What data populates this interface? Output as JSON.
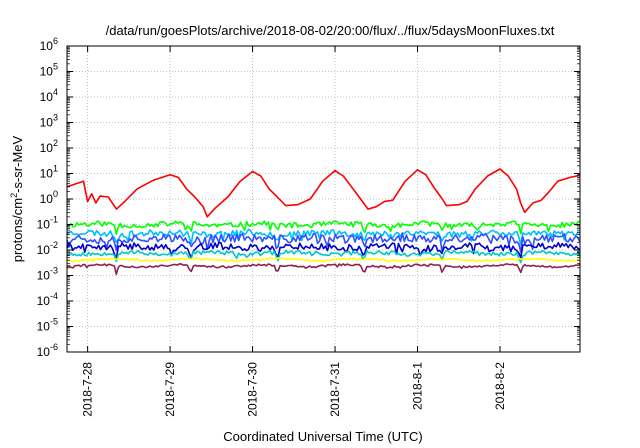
{
  "chart_data": {
    "type": "line",
    "title": "/data/run/goesPlots/archive/2018-08-02/20:00/flux/../flux/5daysMoonFluxes.txt",
    "xlabel": "Coordinated Universal Time (UTC)",
    "ylabel": "protons/cm2-s-sr-MeV",
    "ylabel_parts": {
      "pre": "protons/cm",
      "sup": "2",
      "post": "-s-sr-MeV"
    },
    "yscale": "log",
    "ylim_exp": [
      -6,
      6
    ],
    "y_ticks": [
      {
        "base": "10",
        "exp": "-6"
      },
      {
        "base": "10",
        "exp": "-5"
      },
      {
        "base": "10",
        "exp": "-4"
      },
      {
        "base": "10",
        "exp": "-3"
      },
      {
        "base": "10",
        "exp": "-2"
      },
      {
        "base": "10",
        "exp": "-1"
      },
      {
        "base": "10",
        "exp": "0"
      },
      {
        "base": "10",
        "exp": "1"
      },
      {
        "base": "10",
        "exp": "2"
      },
      {
        "base": "10",
        "exp": "3"
      },
      {
        "base": "10",
        "exp": "4"
      },
      {
        "base": "10",
        "exp": "5"
      },
      {
        "base": "10",
        "exp": "6"
      }
    ],
    "xlim_days": [
      -0.25,
      5.97
    ],
    "x_ticks": [
      "2018-7-28",
      "2018-7-29",
      "2018-7-30",
      "2018-7-31",
      "2018-8-1",
      "2018-8-2"
    ],
    "grid": true,
    "series": [
      {
        "color": "#ff0000",
        "points": [
          [
            -0.25,
            3.0
          ],
          [
            -0.05,
            5.0
          ],
          [
            0.0,
            0.8
          ],
          [
            0.05,
            1.6
          ],
          [
            0.1,
            0.7
          ],
          [
            0.15,
            1.3
          ],
          [
            0.25,
            1.2
          ],
          [
            0.35,
            0.4
          ],
          [
            0.45,
            0.8
          ],
          [
            0.6,
            2.5
          ],
          [
            0.8,
            5.5
          ],
          [
            1.0,
            9.0
          ],
          [
            1.1,
            7.0
          ],
          [
            1.2,
            2.5
          ],
          [
            1.3,
            1.2
          ],
          [
            1.4,
            0.5
          ],
          [
            1.45,
            0.2
          ],
          [
            1.55,
            0.45
          ],
          [
            1.7,
            1.2
          ],
          [
            1.85,
            5.0
          ],
          [
            2.0,
            12.0
          ],
          [
            2.1,
            8.0
          ],
          [
            2.2,
            2.5
          ],
          [
            2.3,
            1.2
          ],
          [
            2.4,
            0.55
          ],
          [
            2.55,
            0.6
          ],
          [
            2.7,
            1.0
          ],
          [
            2.85,
            5.0
          ],
          [
            3.0,
            13.0
          ],
          [
            3.1,
            8.0
          ],
          [
            3.2,
            3.0
          ],
          [
            3.3,
            1.1
          ],
          [
            3.4,
            0.4
          ],
          [
            3.5,
            0.5
          ],
          [
            3.6,
            0.8
          ],
          [
            3.7,
            0.9
          ],
          [
            3.85,
            5.0
          ],
          [
            4.0,
            14.0
          ],
          [
            4.1,
            9.0
          ],
          [
            4.2,
            2.8
          ],
          [
            4.3,
            1.0
          ],
          [
            4.35,
            0.55
          ],
          [
            4.5,
            0.6
          ],
          [
            4.6,
            0.8
          ],
          [
            4.7,
            2.5
          ],
          [
            4.85,
            8.0
          ],
          [
            5.0,
            15.0
          ],
          [
            5.1,
            8.0
          ],
          [
            5.2,
            2.5
          ],
          [
            5.25,
            0.7
          ],
          [
            5.3,
            0.3
          ],
          [
            5.4,
            0.7
          ],
          [
            5.5,
            0.9
          ],
          [
            5.6,
            2.0
          ],
          [
            5.7,
            5.0
          ],
          [
            5.85,
            7.0
          ],
          [
            5.97,
            8.5
          ]
        ]
      },
      {
        "color": "#00ff00",
        "mean": 0.1,
        "amp": 0.1,
        "seed": 11,
        "dips": [
          0.35,
          1.25,
          2.3,
          3.35,
          4.3,
          5.25
        ]
      },
      {
        "color": "#00bfff",
        "mean": 0.045,
        "amp": 0.12,
        "seed": 23,
        "dips": [
          0.35,
          1.25,
          2.3,
          3.35,
          4.3,
          5.25
        ]
      },
      {
        "color": "#3050ff",
        "mean": 0.028,
        "amp": 0.17,
        "seed": 37,
        "dips": [
          0.35,
          1.25,
          2.3,
          3.35,
          4.3,
          5.25
        ]
      },
      {
        "color": "#0000cd",
        "mean": 0.013,
        "amp": 0.14,
        "seed": 41,
        "dips": [
          0.35,
          1.25,
          2.3,
          3.35,
          4.3,
          5.25
        ]
      },
      {
        "color": "#00c8c8",
        "mean": 0.0075,
        "amp": 0.08,
        "seed": 53,
        "dips": [
          0.35,
          1.25,
          2.3,
          3.35,
          4.3,
          5.25
        ]
      },
      {
        "color": "#ffff00",
        "mean": 0.0042,
        "amp": 0.03,
        "seed": 67,
        "dips": []
      },
      {
        "color": "#8b2252",
        "mean": 0.0024,
        "amp": 0.04,
        "seed": 79,
        "dips": [
          0.35,
          1.25,
          2.3,
          3.35,
          4.3,
          5.25
        ]
      }
    ]
  }
}
